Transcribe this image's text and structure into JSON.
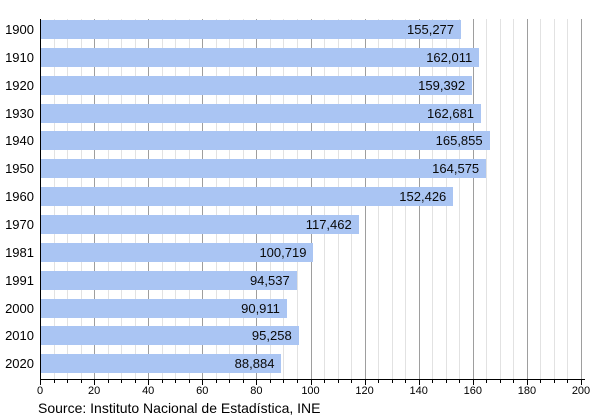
{
  "chart_data": {
    "type": "bar",
    "orientation": "horizontal",
    "title": "",
    "categories": [
      "1900",
      "1910",
      "1920",
      "1930",
      "1940",
      "1950",
      "1960",
      "1970",
      "1981",
      "1991",
      "2000",
      "2010",
      "2020"
    ],
    "values": [
      155277,
      162011,
      159392,
      162681,
      165855,
      164575,
      152426,
      117462,
      100719,
      94537,
      90911,
      95258,
      88884
    ],
    "value_labels": [
      "155,277",
      "162,011",
      "159,392",
      "162,681",
      "165,855",
      "164,575",
      "152,426",
      "117,462",
      "100,719",
      "94,537",
      "90,911",
      "95,258",
      "88,884"
    ],
    "xlim": [
      0,
      200
    ],
    "x_tick_labels": [
      "0",
      "20",
      "40",
      "60",
      "80",
      "100",
      "120",
      "140",
      "160",
      "180",
      "200"
    ],
    "x_major_step": 20,
    "x_minor_step": 5,
    "axis_unit_divisor": 1000,
    "grid": true,
    "legend": "none",
    "source": "Source: Instituto Nacional de Estadística, INE",
    "colors": {
      "bar": "#aac5f3",
      "bar_label_text": "#0a0a0a",
      "grid_minor": "#e2e2e2",
      "grid_major": "#9e9e9e",
      "axis": "#000000",
      "text": "#000000",
      "background": "#ffffff"
    }
  }
}
